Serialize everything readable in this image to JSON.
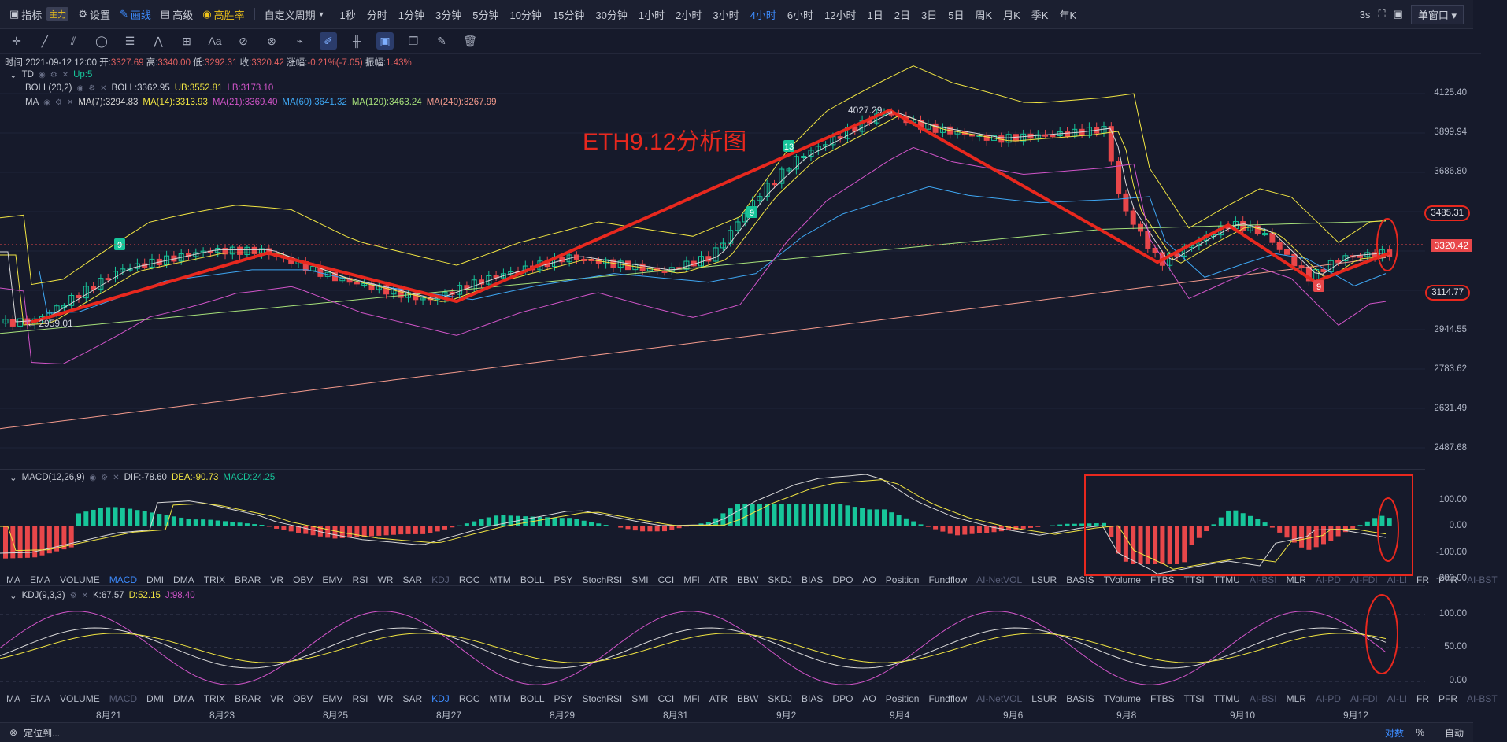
{
  "topbar": {
    "indicator_label": "指标",
    "main_tag": "主力",
    "settings_label": "设置",
    "draw_label": "画线",
    "advanced_label": "高级",
    "winrate_label": "高胜率",
    "custom_period_label": "自定义周期",
    "periods": [
      "1秒",
      "分时",
      "1分钟",
      "3分钟",
      "5分钟",
      "10分钟",
      "15分钟",
      "30分钟",
      "1小时",
      "2小时",
      "3小时",
      "4小时",
      "6小时",
      "12小时",
      "1日",
      "2日",
      "3日",
      "5日",
      "周K",
      "月K",
      "季K",
      "年K"
    ],
    "active_period": "4小时",
    "refresh_label": "3s",
    "window_label": "单窗口"
  },
  "ohlc": {
    "time_label": "时间:",
    "time": "2021-09-12 12:00",
    "open_label": "开:",
    "open": "3327.69",
    "high_label": "高:",
    "high": "3340.00",
    "low_label": "低:",
    "low": "3292.31",
    "close_label": "收:",
    "close": "3320.42",
    "change_label": "涨幅:",
    "change": "-0.21%(-7.05)",
    "amp_label": "振幅:",
    "amp": "1.43%"
  },
  "indicators": {
    "td": {
      "name": "TD",
      "value": "Up:5"
    },
    "boll": {
      "name": "BOLL(20,2)",
      "boll": "BOLL:3362.95",
      "ub": "UB:3552.81",
      "lb": "LB:3173.10"
    },
    "ma": {
      "name": "MA",
      "ma7": "MA(7):3294.83",
      "ma14": "MA(14):3313.93",
      "ma21": "MA(21):3369.40",
      "ma60": "MA(60):3641.32",
      "ma120": "MA(120):3463.24",
      "ma240": "MA(240):3267.99"
    },
    "macd": {
      "name": "MACD(12,26,9)",
      "dif": "DIF:-78.60",
      "dea": "DEA:-90.73",
      "macd": "MACD:24.25"
    },
    "kdj": {
      "name": "KDJ(9,3,3)",
      "k": "K:67.57",
      "d": "D:52.15",
      "j": "J:98.40"
    }
  },
  "annotation_title": "ETH9.12分析图",
  "price_annotations": {
    "high": "4027.29",
    "low": "2959.01",
    "td_marks": [
      "9",
      "9",
      "13",
      "9"
    ]
  },
  "price_axis": [
    "4125.40",
    "3899.94",
    "3686.80",
    "3485.31",
    "3320.42",
    "3114.77",
    "2944.55",
    "2783.62",
    "2631.49",
    "2487.68"
  ],
  "current_price": "3320.42",
  "macd_axis": [
    "100.00",
    "0.00",
    "-100.00",
    "-200.00"
  ],
  "kdj_axis": [
    "100.00",
    "50.00",
    "0.00"
  ],
  "indicator_tabs": [
    "MA",
    "EMA",
    "VOLUME",
    "MACD",
    "DMI",
    "DMA",
    "TRIX",
    "BRAR",
    "VR",
    "OBV",
    "EMV",
    "RSI",
    "WR",
    "SAR",
    "KDJ",
    "ROC",
    "MTM",
    "BOLL",
    "PSY",
    "StochRSI",
    "SMI",
    "CCI",
    "MFI",
    "ATR",
    "BBW",
    "SKDJ",
    "BIAS",
    "DPO",
    "AO",
    "Position",
    "Fundflow",
    "AI-NetVOL",
    "LSUR",
    "BASIS",
    "TVolume",
    "FTBS",
    "TTSI",
    "TTMU",
    "AI-BSI",
    "MLR",
    "AI-PD",
    "AI-FDI",
    "AI-LI",
    "FR",
    "PFR",
    "AI-BST"
  ],
  "x_axis": [
    "8月21",
    "8月23",
    "8月25",
    "8月27",
    "8月29",
    "8月31",
    "9月2",
    "9月4",
    "9月6",
    "9月8",
    "9月10",
    "9月12"
  ],
  "bottom": {
    "locate_label": "定位到...",
    "log_label": "对数",
    "pct_label": "%",
    "auto_label": "自动"
  },
  "colors": {
    "up": "#17c59a",
    "down": "#e8474a",
    "annotation": "#e8281e",
    "ma7": "#d8d8d8",
    "ma14": "#f0e442",
    "ma21": "#d054c8",
    "ma60": "#3ea6f2",
    "ma120": "#a6e07a",
    "ma240": "#f39a8c"
  }
}
